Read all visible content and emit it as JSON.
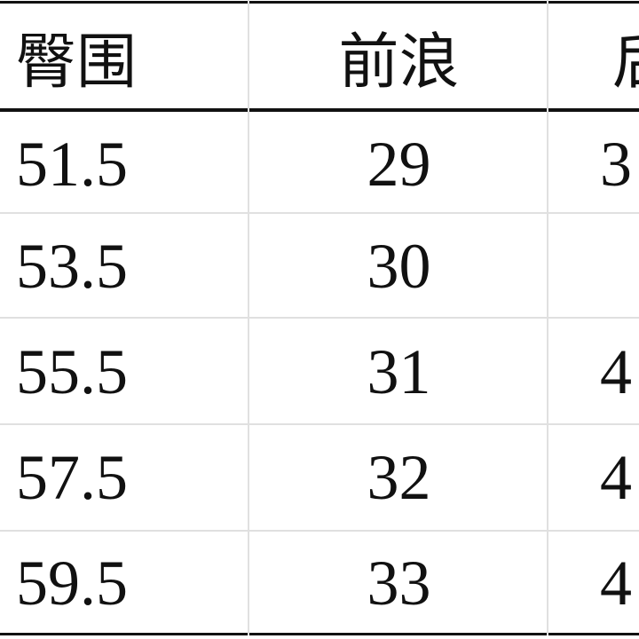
{
  "table": {
    "headers": [
      "臀围",
      "前浪",
      "后"
    ],
    "rows": [
      [
        "51.5",
        "29",
        "3"
      ],
      [
        "53.5",
        "30",
        ""
      ],
      [
        "55.5",
        "31",
        "4"
      ],
      [
        "57.5",
        "32",
        "4"
      ],
      [
        "59.5",
        "33",
        "4"
      ]
    ]
  }
}
